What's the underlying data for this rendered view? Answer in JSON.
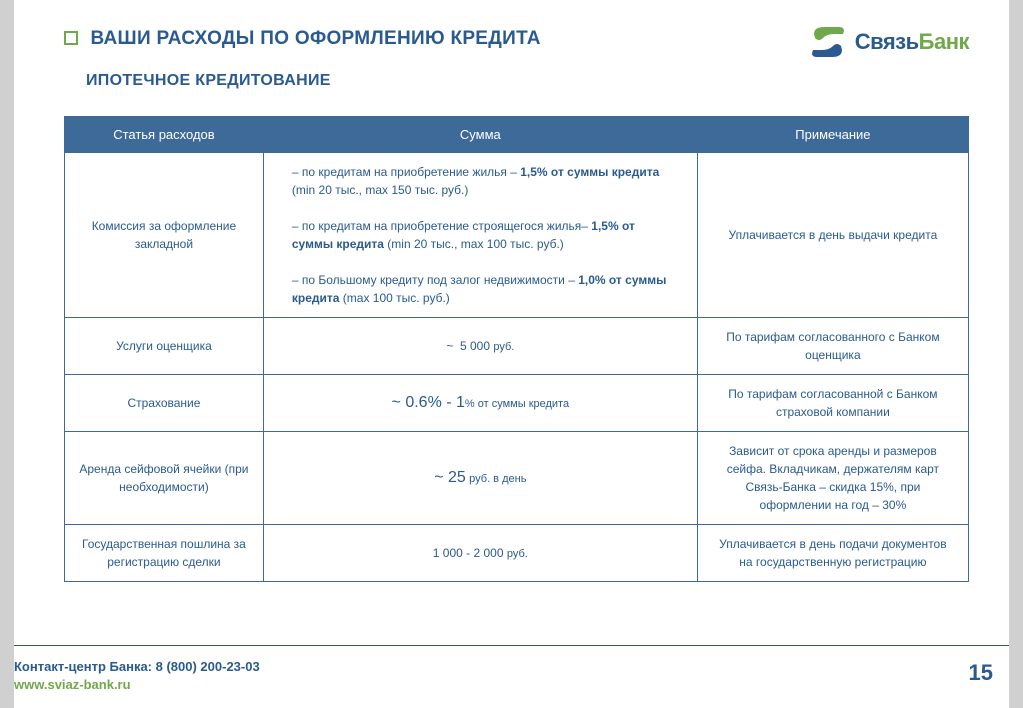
{
  "title": "ВАШИ РАСХОДЫ ПО ОФОРМЛЕНИЮ КРЕДИТА",
  "subtitle": "ИПОТЕЧНОЕ КРЕДИТОВАНИЕ",
  "logo": {
    "part1": "Связь",
    "part2": "Банк"
  },
  "columns": [
    "Статья расходов",
    "Сумма",
    "Примечание"
  ],
  "rows": {
    "r1": {
      "c1": "Комиссия за оформление закладной",
      "c2_html": "– по кредитам на приобретение жилья – <b>1,5% от суммы кредита</b> (min 20 тыс., max 150 тыс. руб.)<br><br>– по кредитам на приобретение строящегося жилья– <b>1,5% от суммы кредита</b> (min 20 тыс., max 100 тыс. руб.)<br><br>– по Большому кредиту под залог недвижимости – <b>1,0% от суммы кредита</b> (max 100 тыс. руб.)",
      "c3": "Уплачивается в день выдачи кредита"
    },
    "r2": {
      "c1": "Услуги оценщика",
      "c2_html": "~&nbsp;&nbsp;5 000 <span class='small-txt'>руб.</span>",
      "c3": "По тарифам согласованного с Банком оценщика"
    },
    "r3": {
      "c1": "Страхование",
      "c2_html": "<span class='big-num'>~ 0.6% - 1</span><span class='small-txt'>% от суммы кредита</span>",
      "c3": "По тарифам согласованной с Банком страховой компании"
    },
    "r4": {
      "c1": "Аренда сейфовой ячейки (при необходимости)",
      "c2_html": "<span class='big-num'>~ 25</span> <span class='small-txt'>руб. в день</span>",
      "c3": "Зависит от срока аренды и размеров сейфа. Вкладчикам, держателям карт Связь-Банка – скидка 15%, при оформлении на год – 30%"
    },
    "r5": {
      "c1": "Государственная пошлина за регистрацию сделки",
      "c2_html": "1 000 - 2 000 <span class='small-txt'>руб.</span>",
      "c3": "Уплачивается в день подачи документов на государственную регистрацию"
    }
  },
  "footer": {
    "contact": "Контакт-центр Банка: 8 (800) 200-23-03",
    "url": "www.sviaz-bank.ru"
  },
  "page": "15",
  "colors": {
    "brand_blue": "#2a5a8f",
    "brand_green": "#70a84a",
    "header_bg": "#3e6a9a",
    "side_gray": "#d0d0d0"
  }
}
